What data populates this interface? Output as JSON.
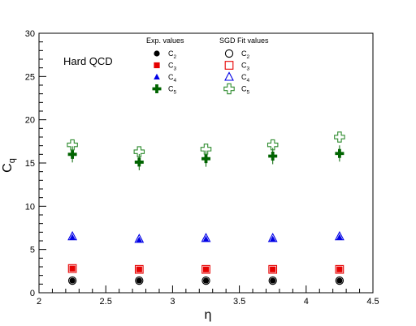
{
  "chart_data": {
    "type": "scatter",
    "annotation": "Hard QCD",
    "xlabel": "η",
    "ylabel": "C",
    "ylabel_sub": "q",
    "xlim": [
      2,
      4.5
    ],
    "ylim": [
      0,
      30
    ],
    "x_ticks": [
      "2",
      "2.5",
      "3",
      "3.5",
      "4",
      "4.5"
    ],
    "y_ticks": [
      "0",
      "5",
      "10",
      "15",
      "20",
      "25",
      "30"
    ],
    "x": [
      2.25,
      2.75,
      3.25,
      3.75,
      4.25
    ],
    "grid": false,
    "legend": {
      "placement": "top",
      "exp_header": "Exp. values",
      "fit_header": "SGD Fit values"
    },
    "series": [
      {
        "name": "C",
        "sub": "2",
        "group": "exp",
        "marker": "circle-filled",
        "color": "#000000",
        "values": [
          1.4,
          1.4,
          1.4,
          1.4,
          1.4
        ]
      },
      {
        "name": "C",
        "sub": "3",
        "group": "exp",
        "marker": "square-filled",
        "color": "#e60000",
        "values": [
          2.8,
          2.7,
          2.7,
          2.7,
          2.7
        ]
      },
      {
        "name": "C",
        "sub": "4",
        "group": "exp",
        "marker": "triangle-filled",
        "color": "#0000e6",
        "values": [
          6.4,
          6.1,
          6.2,
          6.2,
          6.4
        ]
      },
      {
        "name": "C",
        "sub": "5",
        "group": "exp",
        "marker": "cross-filled",
        "color": "#006400",
        "values": [
          16.0,
          15.1,
          15.5,
          15.8,
          16.1
        ]
      },
      {
        "name": "C",
        "sub": "2",
        "group": "fit",
        "marker": "circle-open",
        "color": "#000000",
        "values": [
          1.4,
          1.4,
          1.4,
          1.4,
          1.4
        ]
      },
      {
        "name": "C",
        "sub": "3",
        "group": "fit",
        "marker": "square-open",
        "color": "#e60000",
        "values": [
          2.8,
          2.7,
          2.7,
          2.7,
          2.7
        ]
      },
      {
        "name": "C",
        "sub": "4",
        "group": "fit",
        "marker": "triangle-open",
        "color": "#0000e6",
        "values": [
          6.5,
          6.2,
          6.3,
          6.3,
          6.5
        ]
      },
      {
        "name": "C",
        "sub": "5",
        "group": "fit",
        "marker": "cross-open",
        "color": "#2e8b2e",
        "values": [
          17.1,
          16.3,
          16.6,
          17.1,
          18.0
        ]
      }
    ]
  }
}
